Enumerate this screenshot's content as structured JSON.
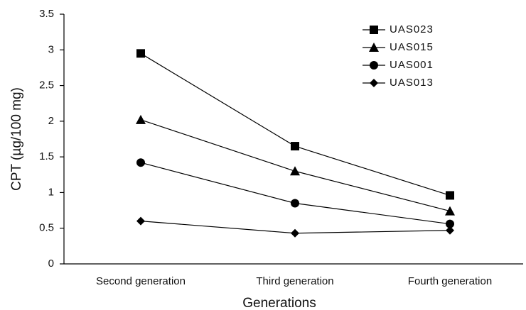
{
  "chart_data": {
    "type": "line",
    "x_label": "Generations",
    "y_label": "CPT (µg/100 mg)",
    "categories": [
      "Second generation",
      "Third generation",
      "Fourth generation"
    ],
    "series": [
      {
        "name": "UAS023",
        "color": "#000000",
        "marker": "square",
        "values": [
          2.95,
          1.65,
          0.96
        ]
      },
      {
        "name": "UAS015",
        "color": "#000000",
        "marker": "triangle",
        "values": [
          2.02,
          1.3,
          0.74
        ]
      },
      {
        "name": "UAS001",
        "color": "#000000",
        "marker": "circle",
        "values": [
          1.42,
          0.85,
          0.56
        ]
      },
      {
        "name": "UAS013",
        "color": "#000000",
        "marker": "diamond",
        "values": [
          0.6,
          0.43,
          0.47
        ]
      }
    ],
    "ylim": [
      0,
      3.5
    ],
    "yticks": [
      0,
      0.5,
      1,
      1.5,
      2,
      2.5,
      3,
      3.5
    ],
    "legend": "upper right"
  }
}
